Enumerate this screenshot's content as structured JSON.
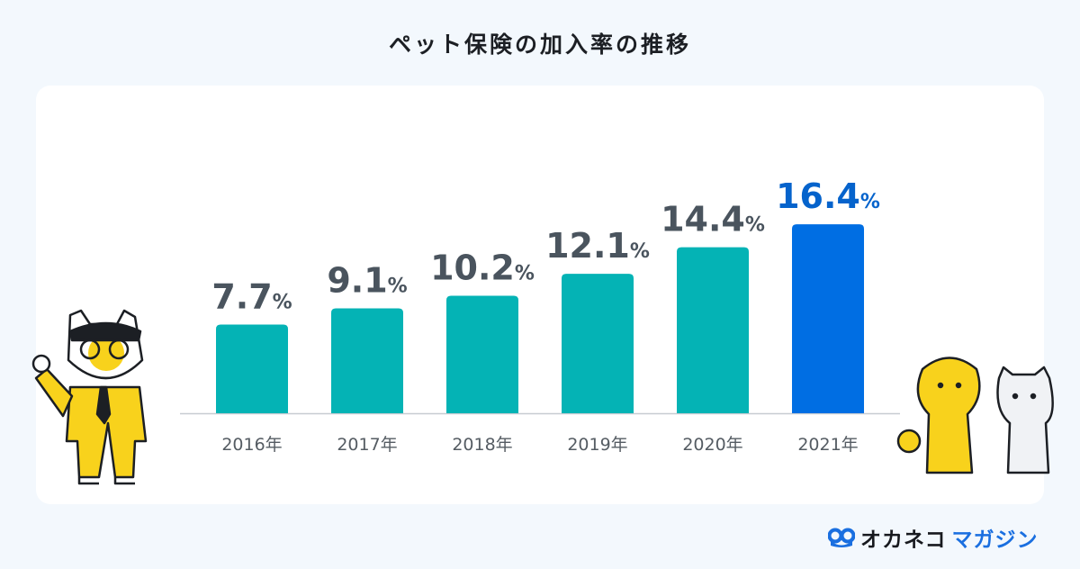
{
  "title": "ペット保険の加入率の推移",
  "chart_data": {
    "type": "bar",
    "categories": [
      "2016年",
      "2017年",
      "2018年",
      "2019年",
      "2020年",
      "2021年"
    ],
    "values": [
      7.7,
      9.1,
      10.2,
      12.1,
      14.4,
      16.4
    ],
    "value_labels": [
      "7.7",
      "9.1",
      "10.2",
      "12.1",
      "14.4",
      "16.4"
    ],
    "unit": "%",
    "title": "ペット保険の加入率の推移",
    "xlabel": "",
    "ylabel": "",
    "ylim": [
      0,
      18
    ],
    "grid": false,
    "colors": {
      "default": "#04b3b5",
      "highlight": "#006ee3",
      "label": "#4a545e",
      "highlight_label": "#0563cc",
      "axis": "#c7ccd1",
      "tick": "#555c63"
    },
    "highlight_index": 5
  },
  "logo": {
    "part1": "オカネコ",
    "part2": "マガジン",
    "icon": "owl-mask-icon"
  },
  "illustrations": [
    "cat-businessman-illustration",
    "dog-and-cat-illustration"
  ]
}
